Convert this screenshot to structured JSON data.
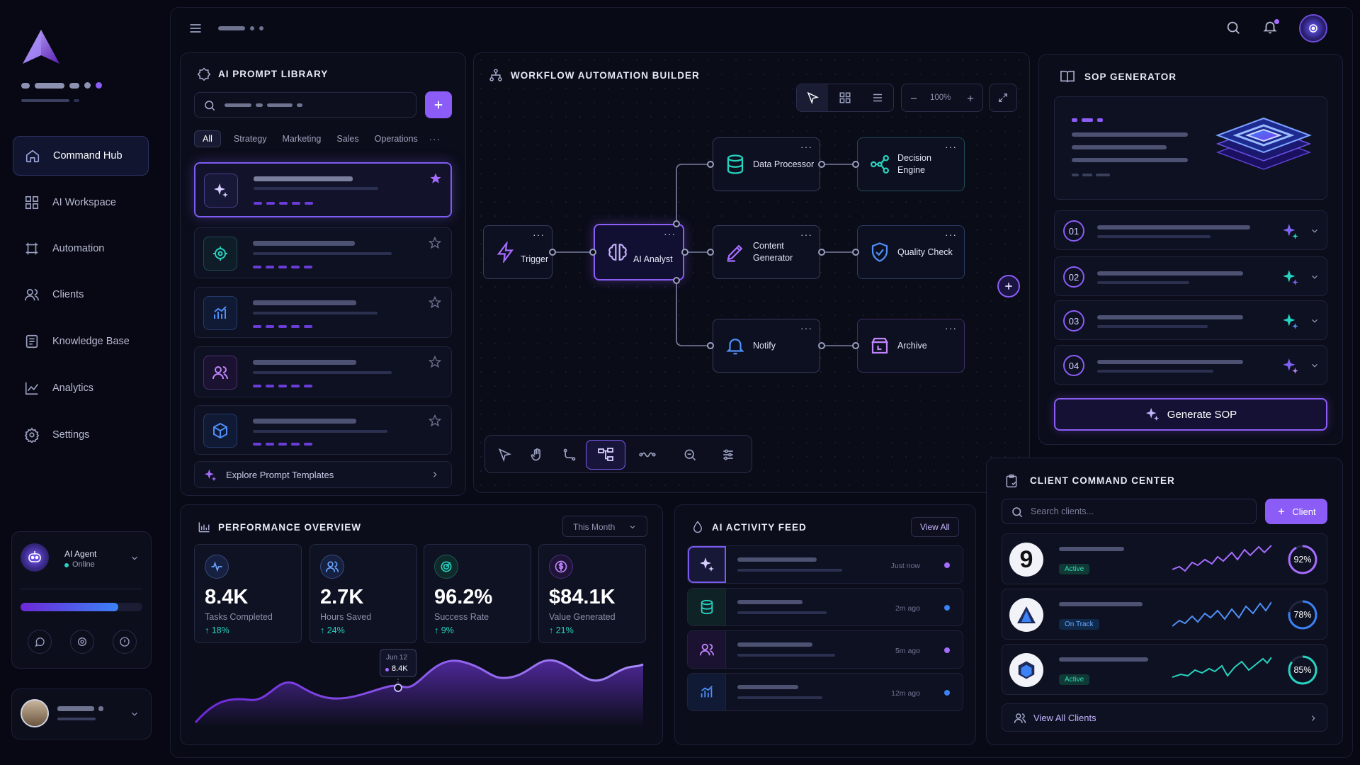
{
  "sidebar": {
    "nav": [
      {
        "label": "Command Hub",
        "icon": "home-icon"
      },
      {
        "label": "AI Workspace",
        "icon": "grid-icon"
      },
      {
        "label": "Automation",
        "icon": "automation-icon"
      },
      {
        "label": "Clients",
        "icon": "users-icon"
      },
      {
        "label": "Knowledge Base",
        "icon": "document-icon"
      },
      {
        "label": "Analytics",
        "icon": "chart-line-icon"
      },
      {
        "label": "Settings",
        "icon": "gear-icon"
      }
    ],
    "agent": {
      "name": "AI Agent",
      "status": "Online",
      "progress": 0.8
    }
  },
  "prompt_library": {
    "title": "AI PROMPT LIBRARY",
    "tabs": [
      "All",
      "Strategy",
      "Marketing",
      "Sales",
      "Operations"
    ],
    "footer": "Explore Prompt Templates"
  },
  "workflow": {
    "title": "WORKFLOW AUTOMATION BUILDER",
    "zoom": "100%",
    "nodes": {
      "trigger": "Trigger",
      "analyst": "AI Analyst",
      "processor": "Data Processor",
      "decision_1": "Decision",
      "decision_2": "Engine",
      "content_1": "Content",
      "content_2": "Generator",
      "quality": "Quality Check",
      "notify": "Notify",
      "archive": "Archive"
    }
  },
  "sop": {
    "title": "SOP GENERATOR",
    "steps": [
      "01",
      "02",
      "03",
      "04"
    ],
    "button": "Generate SOP"
  },
  "performance": {
    "title": "PERFORMANCE OVERVIEW",
    "period": "This Month",
    "stats": [
      {
        "value": "8.4K",
        "label": "Tasks Completed",
        "change": "↑ 18%"
      },
      {
        "value": "2.7K",
        "label": "Hours Saved",
        "change": "↑ 24%"
      },
      {
        "value": "96.2%",
        "label": "Success Rate",
        "change": "↑ 9%"
      },
      {
        "value": "$84.1K",
        "label": "Value Generated",
        "change": "↑ 21%"
      }
    ],
    "tooltip": {
      "date": "Jun 12",
      "value": "8.4K"
    }
  },
  "feed": {
    "title": "AI ACTIVITY FEED",
    "view_all": "View All",
    "items": [
      {
        "time": "Just now",
        "dot": "#a66cff"
      },
      {
        "time": "2m ago",
        "dot": "#3b82f6"
      },
      {
        "time": "5m ago",
        "dot": "#a66cff"
      },
      {
        "time": "12m ago",
        "dot": "#3b82f6"
      }
    ]
  },
  "clients": {
    "title": "CLIENT COMMAND CENTER",
    "search_placeholder": "Search clients...",
    "add_button": "Client",
    "rows": [
      {
        "status": "Active",
        "percent": "92%",
        "fraction": 0.92,
        "color": "#a66cff"
      },
      {
        "status": "On Track",
        "percent": "78%",
        "fraction": 0.78,
        "color": "#3b82f6"
      },
      {
        "status": "Active",
        "percent": "85%",
        "fraction": 0.85,
        "color": "#27d3c0"
      }
    ],
    "view_all": "View All Clients"
  },
  "colors": {
    "accent": "#8b5cf6",
    "teal": "#27d3c0",
    "blue": "#3b82f6"
  }
}
